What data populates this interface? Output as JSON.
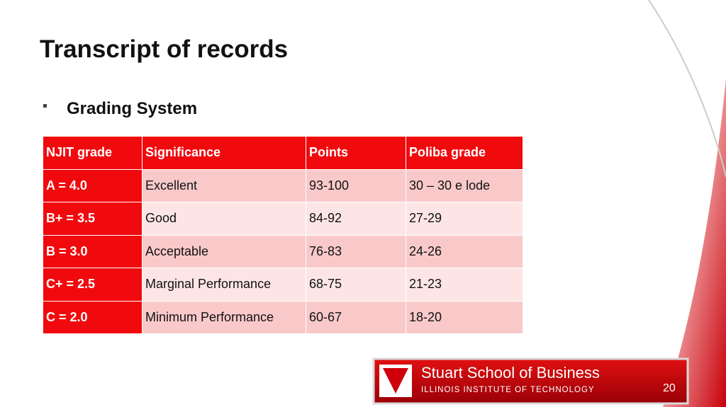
{
  "title": "Transcript of records",
  "bullet": "Grading System",
  "table": {
    "header": [
      "NJIT grade",
      "Significance",
      "Points",
      "Poliba grade"
    ],
    "rows": [
      [
        "A = 4.0",
        "Excellent",
        "93-100",
        "30 – 30 e lode"
      ],
      [
        "B+ = 3.5",
        "Good",
        "84-92",
        "27-29"
      ],
      [
        "B = 3.0",
        "Acceptable",
        "76-83",
        "24-26"
      ],
      [
        "C+ = 2.5",
        "Marginal Performance",
        "68-75",
        "21-23"
      ],
      [
        "C = 2.0",
        "Minimum Performance",
        "60-67",
        "18-20"
      ]
    ]
  },
  "logo": {
    "name": "Stuart School of Business",
    "institute": "ILLINOIS INSTITUTE OF TECHNOLOGY"
  },
  "page_number": "20"
}
